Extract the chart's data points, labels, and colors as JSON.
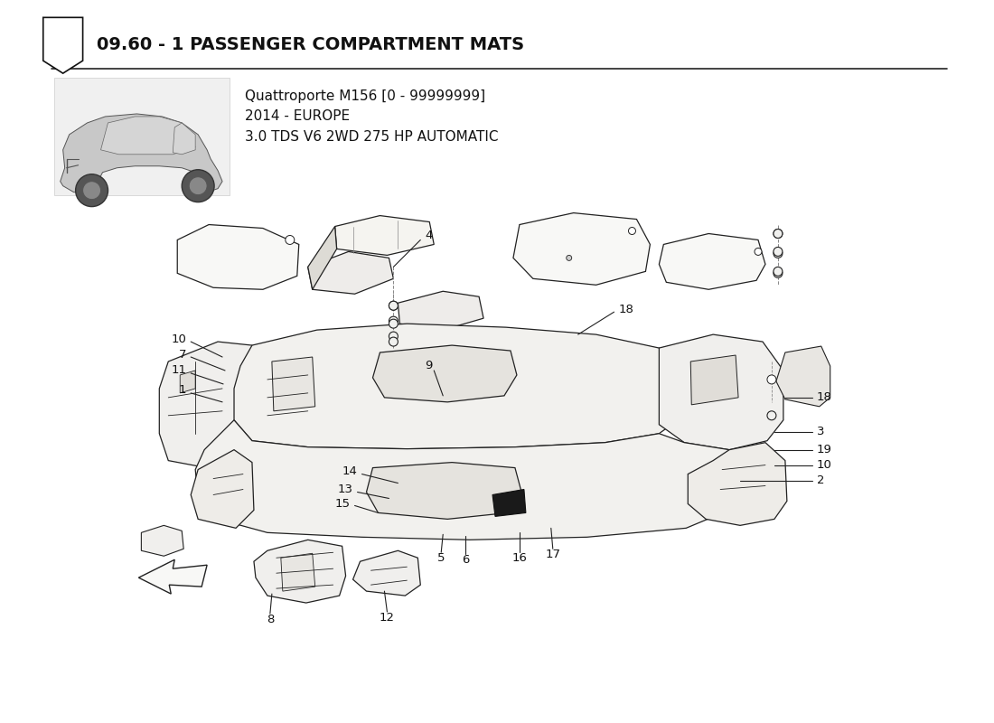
{
  "title": "09.60 - 1 PASSENGER COMPARTMENT MATS",
  "subtitle_line1": "Quattroporte M156 [0 - 99999999]",
  "subtitle_line2": "2014 - EUROPE",
  "subtitle_line3": "3.0 TDS V6 2WD 275 HP AUTOMATIC",
  "bg_color": "#ffffff",
  "title_fontsize": 14,
  "subtitle_fontsize": 11,
  "label_fontsize": 9.5,
  "line_color": "#222222",
  "fill_color": "#f5f5f3",
  "fill_light": "#fafaf8",
  "fill_dark": "#e0ddd8"
}
